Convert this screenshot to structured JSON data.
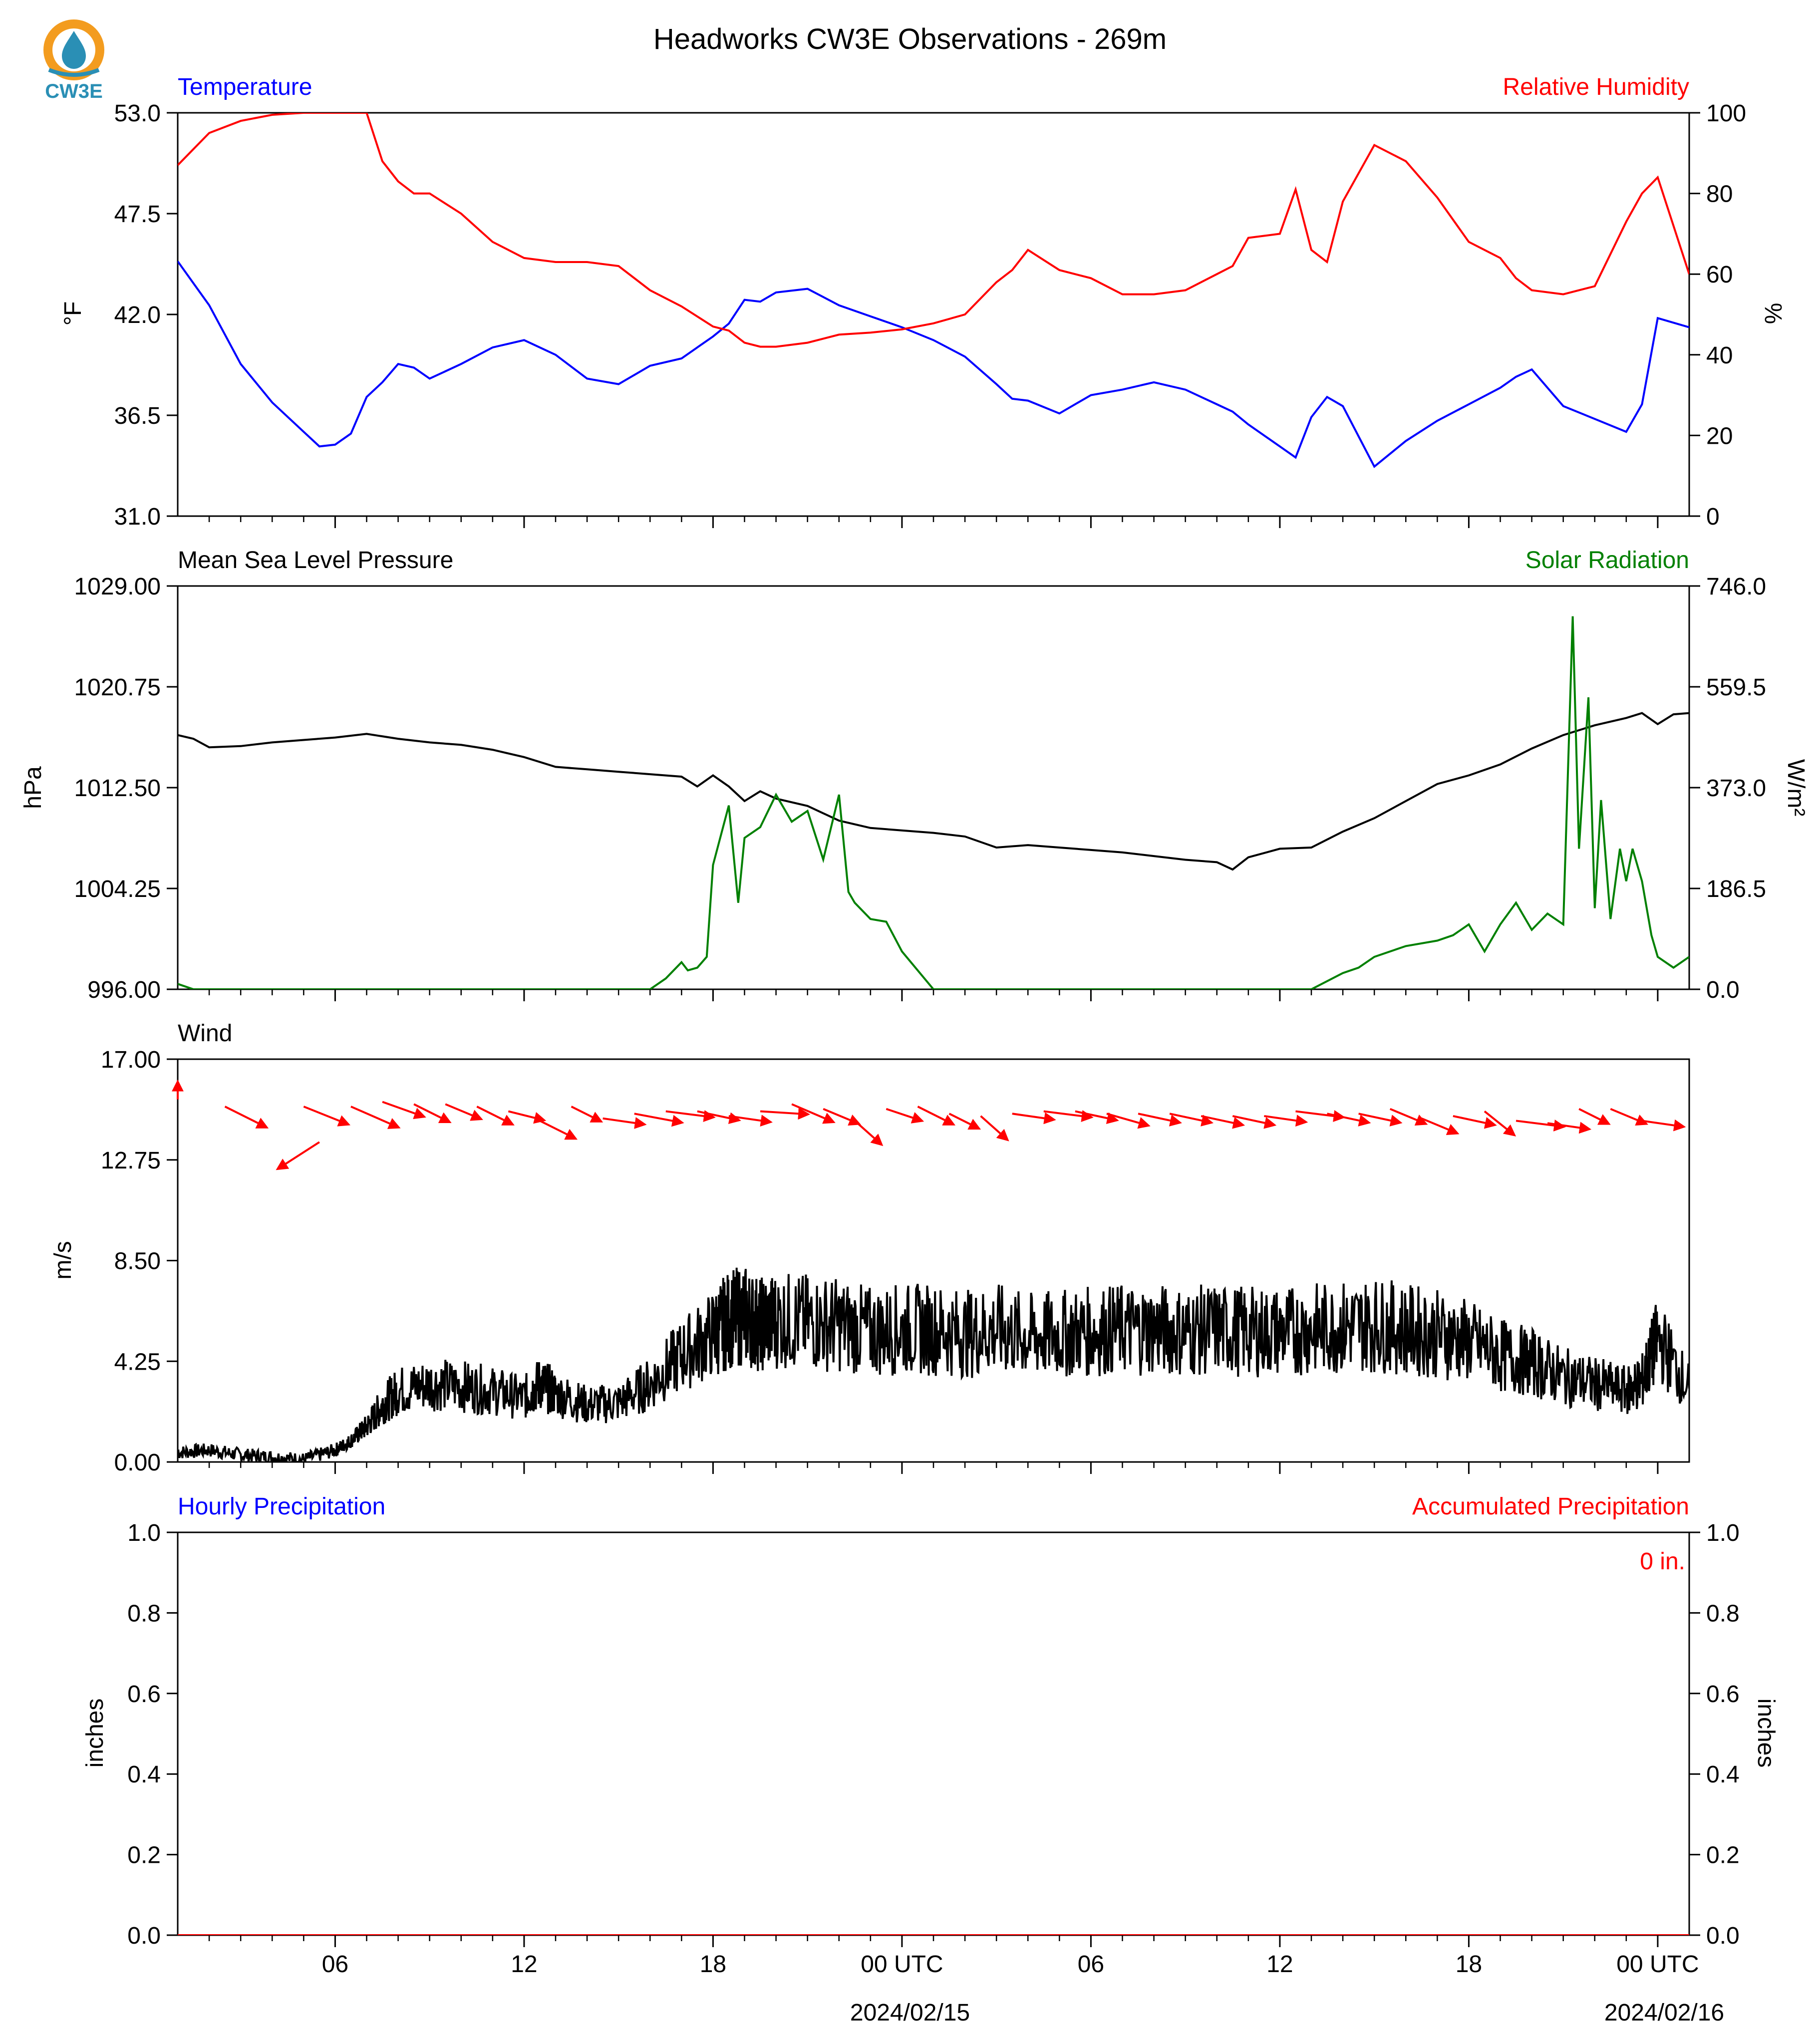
{
  "title": "Headworks CW3E Observations - 269m",
  "logo": {
    "text": "CW3E",
    "ring_color": "#f39c1f",
    "drop_color": "#2a8fb5"
  },
  "x_axis": {
    "ticks": [
      "06",
      "12",
      "18",
      "00 UTC",
      "06",
      "12",
      "18",
      "00 UTC"
    ],
    "date_labels": [
      "2024/02/15",
      "2024/02/16"
    ]
  },
  "chart_data": [
    {
      "type": "line",
      "name": "temperature-humidity",
      "left_label": "Temperature",
      "left_label_color": "#0000ff",
      "right_label": "Relative Humidity",
      "right_label_color": "#ff0000",
      "ylabel": "°F",
      "ylabel_right": "%",
      "yticks": [
        "53.0",
        "47.5",
        "42.0",
        "36.5",
        "31.0"
      ],
      "yticks_right": [
        "100",
        "80",
        "60",
        "40",
        "20",
        "0"
      ],
      "ylim": [
        31,
        53
      ],
      "ylim_right": [
        0,
        100
      ],
      "x_hours": [
        0,
        1,
        2,
        3,
        4,
        4.5,
        5,
        5.5,
        6,
        6.5,
        7,
        7.5,
        8,
        9,
        10,
        11,
        12,
        13,
        14,
        15,
        16,
        17,
        17.5,
        18,
        18.5,
        19,
        20,
        21,
        22,
        23,
        24,
        25,
        26,
        26.5,
        27,
        28,
        29,
        30,
        31,
        32,
        33,
        33.5,
        34,
        35,
        35.5,
        36,
        36.5,
        37,
        38,
        39,
        40,
        41,
        42,
        42.5,
        43,
        44,
        45,
        46,
        46.5,
        47,
        48
      ],
      "series": [
        {
          "name": "Temperature",
          "color": "#0000ff",
          "axis": "left",
          "values": [
            44.9,
            42.5,
            39.3,
            37.2,
            35.6,
            34.8,
            34.9,
            35.5,
            37.5,
            38.3,
            39.3,
            39.1,
            38.5,
            39.3,
            40.2,
            40.6,
            39.8,
            38.5,
            38.2,
            39.2,
            39.6,
            40.8,
            41.5,
            42.8,
            42.7,
            43.2,
            43.4,
            42.5,
            41.9,
            41.3,
            40.6,
            39.7,
            38.2,
            37.4,
            37.3,
            36.6,
            37.6,
            37.9,
            38.3,
            37.9,
            37.1,
            36.7,
            36.0,
            34.8,
            34.2,
            36.4,
            37.5,
            37.0,
            33.7,
            35.1,
            36.2,
            37.1,
            38.0,
            38.6,
            39.0,
            37.0,
            36.3,
            35.6,
            37.1,
            41.8,
            41.3
          ]
        },
        {
          "name": "Relative Humidity",
          "color": "#ff0000",
          "axis": "right",
          "values": [
            87,
            95,
            98,
            99.5,
            100,
            100,
            100,
            100,
            100,
            88,
            83,
            80,
            80,
            75,
            68,
            64,
            63,
            63,
            62,
            56,
            52,
            47,
            46,
            43,
            42,
            42,
            43,
            45,
            45.5,
            46.3,
            47.8,
            50,
            58,
            61,
            66,
            61,
            59,
            55,
            55,
            56,
            60,
            62,
            69,
            70,
            81,
            66,
            63,
            78,
            92,
            88,
            79,
            68,
            64,
            59,
            56,
            55,
            57,
            73,
            80,
            84,
            60
          ]
        }
      ]
    },
    {
      "type": "line",
      "name": "pressure-solar",
      "left_label": "Mean Sea Level Pressure",
      "left_label_color": "#000000",
      "right_label": "Solar Radiation",
      "right_label_color": "#008000",
      "ylabel": "hPa",
      "ylabel_right": "W/m²",
      "yticks": [
        "1029.00",
        "1020.75",
        "1012.50",
        "1004.25",
        "996.00"
      ],
      "yticks_right": [
        "746.0",
        "559.5",
        "373.0",
        "186.5",
        "0.0"
      ],
      "ylim": [
        996,
        1029
      ],
      "ylim_right": [
        0,
        746
      ],
      "series": [
        {
          "name": "Mean Sea Level Pressure",
          "color": "#000000",
          "axis": "left",
          "x": [
            0,
            0.5,
            1,
            2,
            3,
            4,
            5,
            6,
            7,
            8,
            9,
            10,
            11,
            12,
            13,
            14,
            15,
            16,
            16.5,
            17,
            17.5,
            18,
            18.5,
            19,
            20,
            21,
            22,
            23,
            24,
            25,
            26,
            27,
            28,
            29,
            30,
            31,
            32,
            33,
            33.5,
            34,
            35,
            36,
            37,
            38,
            39,
            40,
            41,
            42,
            43,
            44,
            45,
            46,
            46.5,
            47,
            47.5,
            48
          ],
          "values": [
            1016.8,
            1016.5,
            1015.8,
            1015.9,
            1016.2,
            1016.4,
            1016.6,
            1016.9,
            1016.5,
            1016.2,
            1016.0,
            1015.6,
            1015.0,
            1014.2,
            1014.0,
            1013.8,
            1013.6,
            1013.4,
            1012.6,
            1013.5,
            1012.6,
            1011.4,
            1012.2,
            1011.6,
            1011.0,
            1009.8,
            1009.2,
            1009.0,
            1008.8,
            1008.5,
            1007.6,
            1007.8,
            1007.6,
            1007.4,
            1007.2,
            1006.9,
            1006.6,
            1006.4,
            1005.8,
            1006.8,
            1007.5,
            1007.6,
            1008.9,
            1010.0,
            1011.4,
            1012.8,
            1013.5,
            1014.4,
            1015.7,
            1016.8,
            1017.6,
            1018.2,
            1018.6,
            1017.7,
            1018.5,
            1018.6
          ]
        },
        {
          "name": "Solar Radiation",
          "color": "#008000",
          "axis": "right",
          "x": [
            0,
            0.5,
            1,
            2,
            3,
            14,
            15,
            15.5,
            16,
            16.2,
            16.5,
            16.8,
            17,
            17.5,
            17.8,
            18,
            18.5,
            19,
            19.5,
            20,
            20.5,
            21,
            21.3,
            21.5,
            22,
            22.5,
            23,
            24,
            25,
            26,
            32,
            36,
            37,
            37.5,
            38,
            39,
            40,
            40.5,
            41,
            41.5,
            42,
            42.5,
            43,
            43.5,
            44,
            44.3,
            44.5,
            44.8,
            45,
            45.2,
            45.5,
            45.8,
            46,
            46.2,
            46.5,
            46.8,
            47,
            47.5,
            48
          ],
          "values": [
            10,
            0,
            0,
            0,
            0,
            0,
            0,
            20,
            50,
            35,
            40,
            60,
            230,
            340,
            160,
            280,
            300,
            360,
            310,
            330,
            240,
            360,
            180,
            160,
            130,
            125,
            70,
            0,
            0,
            0,
            0,
            0,
            30,
            40,
            60,
            80,
            90,
            100,
            120,
            70,
            120,
            160,
            110,
            140,
            120,
            690,
            260,
            540,
            150,
            350,
            130,
            260,
            200,
            260,
            200,
            100,
            60,
            40,
            60
          ]
        }
      ]
    },
    {
      "type": "line",
      "name": "wind",
      "left_label": "Wind",
      "left_label_color": "#000000",
      "ylabel": "m/s",
      "yticks": [
        "17.00",
        "12.75",
        "8.50",
        "4.25",
        "0.00"
      ],
      "ylim": [
        0,
        17
      ],
      "series": [
        {
          "name": "Wind",
          "color": "#000000",
          "axis": "left",
          "x": [
            0,
            1,
            2,
            3,
            4,
            5,
            5.5,
            6,
            6.5,
            7,
            8,
            9,
            10,
            11,
            11.5,
            12,
            13,
            14,
            15,
            16,
            17,
            17.5,
            18,
            18.5,
            19,
            20,
            21,
            22,
            23,
            24,
            25,
            26,
            27,
            28,
            29,
            30,
            31,
            32,
            33,
            34,
            35,
            36,
            37,
            38,
            39,
            40,
            41,
            42,
            43,
            44,
            45,
            46,
            46.5,
            47,
            48
          ],
          "values": [
            0.4,
            0.5,
            0.3,
            0.2,
            0.1,
            0.5,
            0.9,
            1.5,
            2.4,
            3.0,
            3.3,
            3.2,
            3.0,
            2.7,
            3.3,
            2.9,
            2.4,
            2.5,
            3.3,
            4.5,
            5.4,
            6.0,
            6.2,
            5.8,
            6.0,
            5.9,
            5.8,
            5.5,
            5.6,
            5.6,
            5.4,
            5.6,
            5.3,
            5.4,
            5.5,
            5.6,
            5.6,
            5.5,
            5.6,
            5.5,
            5.5,
            5.6,
            5.7,
            5.8,
            5.6,
            5.4,
            5.1,
            4.5,
            4.2,
            3.6,
            3.3,
            3.0,
            3.4,
            5.2,
            3.1
          ]
        },
        {
          "name": "Wind vectors",
          "color": "#ff0000",
          "axis": "left",
          "x": [
            0,
            1.5,
            4,
            4.5,
            5.5,
            6.5,
            7.5,
            8.5,
            9.5,
            10.5,
            11.5,
            12.5,
            13.5,
            14.5,
            15.5,
            16.5,
            17.5,
            18.5,
            19.5,
            20.5,
            21.5,
            22.5,
            23.5,
            24.5,
            25.5,
            26.5,
            27.5,
            28.5,
            29.5,
            30.5,
            31.5,
            32.5,
            33.5,
            34.5,
            35.5,
            36.5,
            37.5,
            38.5,
            39.5,
            40.5,
            41.5,
            42.5,
            43.5,
            44.5,
            45.5,
            46.5
          ],
          "values": [
            15.3,
            15.0,
            15.0,
            13.5,
            15.0,
            15.2,
            15.1,
            15.1,
            15.0,
            14.8,
            14.4,
            15.0,
            14.5,
            14.7,
            14.8,
            14.8,
            14.6,
            14.8,
            15.1,
            14.9,
            14.4,
            14.9,
            15.0,
            14.7,
            14.6,
            14.7,
            14.8,
            14.8,
            14.7,
            14.7,
            14.7,
            14.6,
            14.6,
            14.6,
            14.8,
            14.7,
            14.7,
            14.9,
            14.5,
            14.6,
            14.8,
            14.4,
            14.3,
            14.9,
            14.9,
            14.4
          ],
          "u": [
            0,
            1.4,
            1.5,
            -1.4,
            1.6,
            1.4,
            1.2,
            1.2,
            1.2,
            1.2,
            1.2,
            1.0,
            1.4,
            1.6,
            1.6,
            1.4,
            1.4,
            1.6,
            1.4,
            1.2,
            0.9,
            1.2,
            1.2,
            1.0,
            0.9,
            1.4,
            1.6,
            1.4,
            1.4,
            1.4,
            1.4,
            1.4,
            1.4,
            1.4,
            1.6,
            1.4,
            1.4,
            1.2,
            1.2,
            1.4,
            1.0,
            1.6,
            1.4,
            1.0,
            1.2,
            1.4
          ],
          "v": [
            0.6,
            -0.7,
            -0.6,
            -0.9,
            -0.7,
            -0.5,
            -0.6,
            -0.5,
            -0.6,
            -0.3,
            -0.6,
            -0.5,
            -0.2,
            -0.3,
            -0.2,
            -0.3,
            -0.2,
            -0.1,
            -0.6,
            -0.5,
            -0.8,
            -0.4,
            -0.6,
            -0.5,
            -0.8,
            -0.2,
            -0.2,
            -0.3,
            -0.4,
            -0.3,
            -0.3,
            -0.3,
            -0.3,
            -0.2,
            -0.2,
            -0.3,
            -0.3,
            -0.5,
            -0.5,
            -0.3,
            -0.8,
            -0.2,
            -0.2,
            -0.5,
            -0.5,
            -0.2
          ]
        }
      ]
    },
    {
      "type": "line",
      "name": "precipitation",
      "left_label": "Hourly Precipitation",
      "left_label_color": "#0000ff",
      "right_label": "Accumulated Precipitation",
      "right_label_color": "#ff0000",
      "ylabel": "inches",
      "ylabel_right": "inches",
      "yticks": [
        "1.0",
        "0.8",
        "0.6",
        "0.4",
        "0.2",
        "0.0"
      ],
      "yticks_right": [
        "1.0",
        "0.8",
        "0.6",
        "0.4",
        "0.2",
        "0.0"
      ],
      "ylim": [
        0,
        1
      ],
      "ylim_right": [
        0,
        1
      ],
      "annotation": "0 in.",
      "series": [
        {
          "name": "Accumulated Precipitation",
          "color": "#ff0000",
          "axis": "right",
          "x": [
            0,
            48
          ],
          "values": [
            0,
            0
          ]
        }
      ]
    }
  ]
}
